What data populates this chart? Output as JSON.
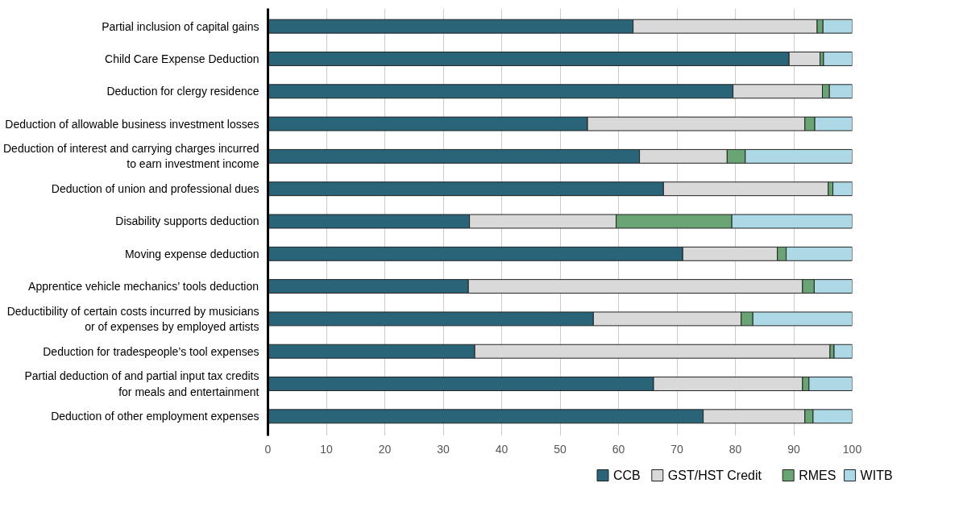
{
  "chart_data": {
    "type": "bar",
    "orientation": "horizontal",
    "stacked": true,
    "categories": [
      "Partial inclusion of capital gains",
      "Child Care Expense Deduction",
      "Deduction for clergy residence",
      "Deduction of allowable business investment losses",
      "Deduction of interest and carrying charges incurred to earn investment income",
      "Deduction of union and professional dues",
      "Disability supports deduction",
      "Moving expense deduction",
      "Apprentice vehicle mechanics’ tools deduction",
      "Deductibility of certain costs incurred by musicians or of expenses by employed artists",
      "Deduction for tradespeople’s tool expenses",
      "Partial deduction of and partial input tax credits for meals and entertainment",
      "Deduction of other employment expenses"
    ],
    "series": [
      {
        "name": "CCB",
        "color": "#2a6478",
        "values": [
          62.5,
          89.2,
          79.6,
          54.7,
          63.6,
          67.7,
          34.5,
          71.0,
          34.3,
          55.7,
          35.4,
          66.0,
          74.5
        ]
      },
      {
        "name": "GST/HST Credit",
        "color": "#d9d9d9",
        "values": [
          31.5,
          5.3,
          15.3,
          37.2,
          15.0,
          28.2,
          25.1,
          16.2,
          57.2,
          25.3,
          60.8,
          25.5,
          17.4
        ]
      },
      {
        "name": "RMES",
        "color": "#6aa474",
        "values": [
          1.0,
          0.6,
          1.2,
          1.7,
          3.1,
          0.8,
          19.8,
          1.5,
          2.0,
          2.0,
          0.7,
          1.1,
          1.4
        ]
      },
      {
        "name": "WITB",
        "color": "#add8e6",
        "values": [
          5.0,
          4.9,
          3.9,
          6.4,
          18.3,
          3.3,
          20.6,
          11.3,
          6.5,
          17.0,
          3.1,
          7.4,
          6.7
        ]
      }
    ],
    "xlim": [
      0,
      100
    ],
    "xticks": [
      0,
      10,
      20,
      30,
      40,
      50,
      60,
      70,
      80,
      90,
      100
    ],
    "grid": "x",
    "legend": "bottom"
  }
}
